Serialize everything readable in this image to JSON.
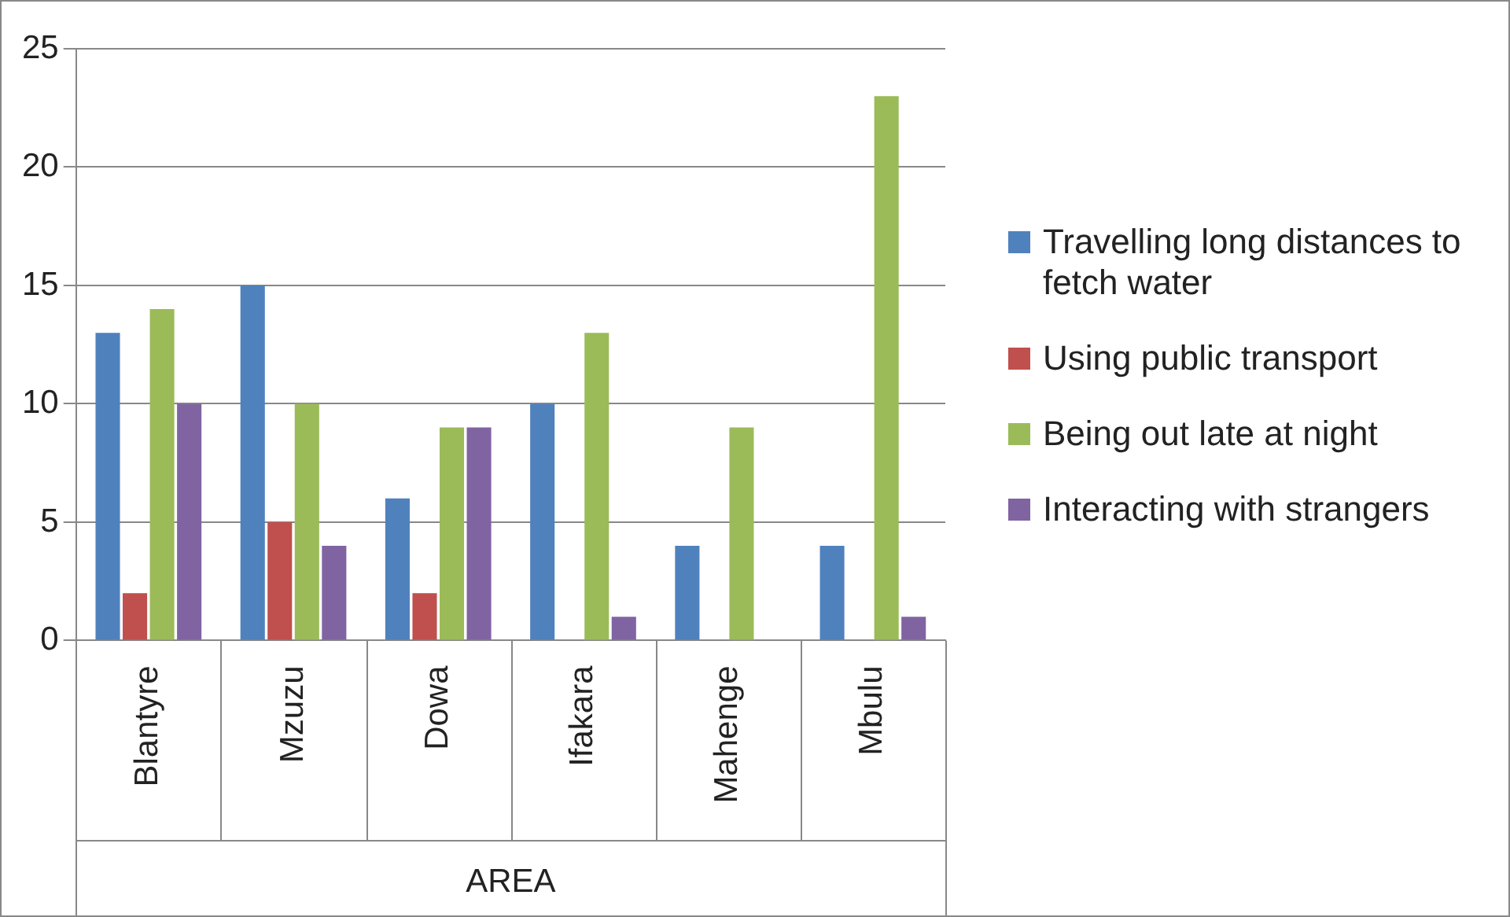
{
  "chart_data": {
    "type": "bar",
    "xlabel": "AREA",
    "categories": [
      "Blantyre",
      "Mzuzu",
      "Dowa",
      "Ifakara",
      "Mahenge",
      "Mbulu"
    ],
    "series": [
      {
        "name": "Travelling long distances to fetch water",
        "color": "#4f81bd",
        "values": [
          13,
          15,
          6,
          10,
          4,
          4
        ]
      },
      {
        "name": "Using public transport",
        "color": "#c0504d",
        "values": [
          2,
          5,
          2,
          0,
          0,
          0
        ]
      },
      {
        "name": "Being out late at night",
        "color": "#9bbb59",
        "values": [
          14,
          10,
          9,
          13,
          9,
          23
        ]
      },
      {
        "name": "Interacting with strangers",
        "color": "#8064a2",
        "values": [
          10,
          4,
          9,
          1,
          0,
          1
        ]
      }
    ],
    "ylim": [
      0,
      25
    ],
    "yticks": [
      0,
      5,
      10,
      15,
      20,
      25
    ],
    "grid": "y",
    "legend": "right"
  }
}
